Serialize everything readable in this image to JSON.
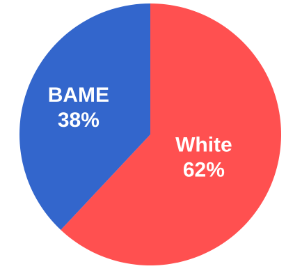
{
  "chart_data": {
    "type": "pie",
    "title": "",
    "slices": [
      {
        "label": "White",
        "value": 62,
        "value_label": "62%",
        "color": "#FF5050"
      },
      {
        "label": "BAME",
        "value": 38,
        "value_label": "38%",
        "color": "#3366CC"
      }
    ],
    "start_angle_deg": 0,
    "direction": "clockwise",
    "legend": "none",
    "labels_on_slices": true
  }
}
